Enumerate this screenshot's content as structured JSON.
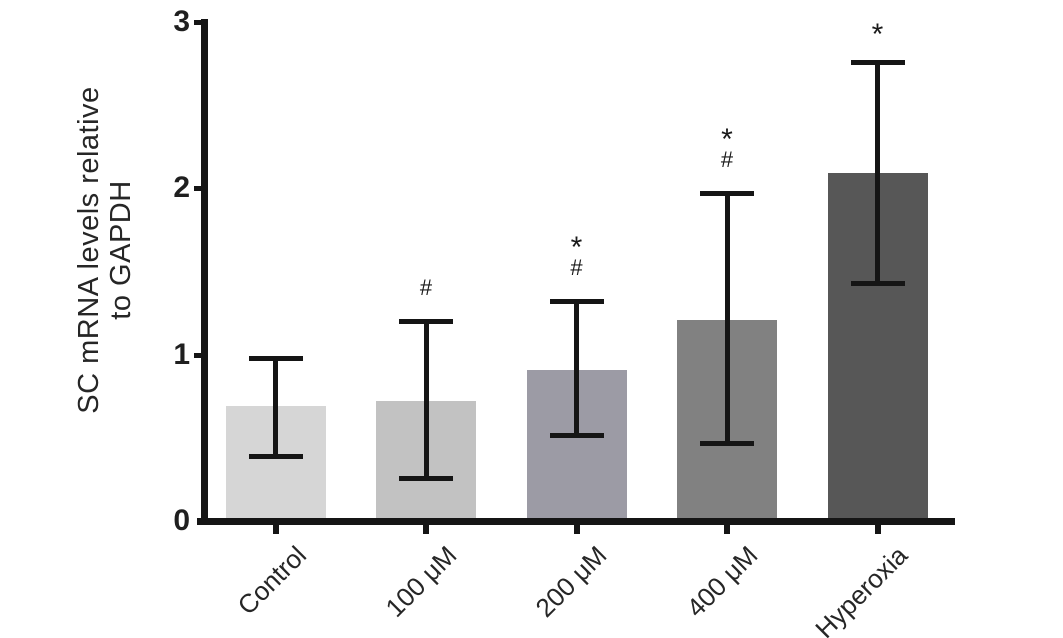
{
  "chart_data": {
    "type": "bar",
    "title": "",
    "ylabel_lines": [
      "SC mRNA levels relative",
      "to GAPDH"
    ],
    "ylabel": "SC mRNA levels relative to GAPDH",
    "xlabel": "",
    "categories": [
      "Control",
      "100 μM",
      "200 μM",
      "400 μM",
      "Hyperoxia"
    ],
    "values": [
      0.69,
      0.72,
      0.91,
      1.21,
      2.09
    ],
    "error_high": [
      0.98,
      1.2,
      1.32,
      1.97,
      2.76
    ],
    "error_low": [
      0.39,
      0.26,
      0.52,
      0.47,
      1.43
    ],
    "significance": [
      [],
      [
        "#"
      ],
      [
        "*",
        "#"
      ],
      [
        "*",
        "#"
      ],
      [
        "*"
      ]
    ],
    "bar_colors": [
      "#d6d6d6",
      "#c2c2c2",
      "#9c9ba5",
      "#818181",
      "#575757"
    ],
    "y_ticks": [
      "0",
      "1",
      "2",
      "3"
    ],
    "ylim": [
      0,
      3
    ],
    "grid": false,
    "legend": null,
    "axis_color": "#151515",
    "text_color": "#262626",
    "background_color": "#ffffff"
  }
}
